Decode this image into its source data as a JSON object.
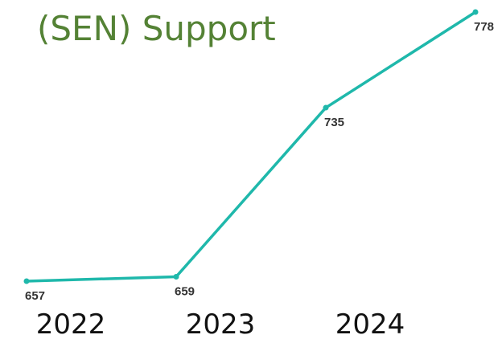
{
  "chart_data": {
    "type": "line",
    "title": "(SEN) Support",
    "categories": [
      "2022",
      "2023",
      "2024",
      null
    ],
    "series": [
      {
        "color": "#1fb8ab",
        "values": [
          657,
          659,
          735,
          778
        ]
      }
    ]
  }
}
